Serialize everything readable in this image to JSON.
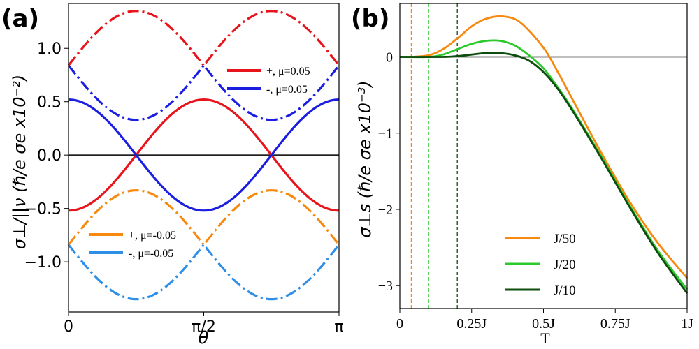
{
  "panels": {
    "a": {
      "label": "(a)"
    },
    "b": {
      "label": "(b)"
    }
  },
  "chart_data": [
    {
      "type": "line",
      "panel": "(a)",
      "xlabel": "θ",
      "ylabel": "σ⊥/||ν (ℏ/e σe x10⁻²)",
      "xlim": [
        0,
        3.14159
      ],
      "ylim": [
        -1.47,
        1.42
      ],
      "xticks": [
        "0",
        "π/2",
        "π"
      ],
      "yticks": [
        {
          "value": 1.0,
          "label": "1.0"
        },
        {
          "value": 0.5,
          "label": "0.5"
        },
        {
          "value": 0.0,
          "label": "0.0"
        },
        {
          "value": -0.5,
          "label": "−0.5"
        },
        {
          "value": -1.0,
          "label": "−1.0"
        }
      ],
      "zero_line": true,
      "legends": [
        {
          "placement": "top-right",
          "entries": [
            {
              "label": "+, μ=0.05",
              "color": "#e8141b"
            },
            {
              "label": "-, μ=0.05",
              "color": "#1a1ee0"
            }
          ]
        },
        {
          "placement": "bottom-left",
          "entries": [
            {
              "label": "+, μ=-0.05",
              "color": "#f7890f"
            },
            {
              "label": "-, μ=-0.05",
              "color": "#2e8fe8"
            }
          ]
        }
      ],
      "series": [
        {
          "name": "+, μ=0.05",
          "style": "solid",
          "color": "#e8141b",
          "sampled_function": "-0.52*cos(2θ)"
        },
        {
          "name": "-, μ=0.05",
          "style": "solid",
          "color": "#1a1ee0",
          "sampled_function": "0.52*cos(2θ)"
        },
        {
          "style": "dashdot",
          "color": "#e8141b",
          "sampled_function": "0.84+0.51*sin(2θ) for θ<π/2, 0.84-0.51*sin(2θ) for θ>π/2"
        },
        {
          "style": "dashdot",
          "color": "#1a1ee0",
          "sampled_function": "0.84-0.51*sin(2θ) for θ<π/2, 0.84+0.51*sin(2θ) for θ>π/2"
        },
        {
          "style": "dashdot",
          "color": "#f7890f",
          "sampled_function": "-0.84+0.51*sin(2θ) for θ<π/2, -0.84-0.51*sin(2θ) for θ>π/2"
        },
        {
          "style": "dashdot",
          "color": "#2e8fe8",
          "sampled_function": "-0.84-0.51*sin(2θ) for θ<π/2, -0.84+0.51*sin(2θ) for θ>π/2"
        }
      ]
    },
    {
      "type": "line",
      "panel": "(b)",
      "xlabel": "T",
      "ylabel": "σ⊥s (ℏ/e σe x10⁻³)",
      "xlim": [
        0,
        1.0
      ],
      "ylim": [
        -3.3,
        0.7
      ],
      "xticks": [
        {
          "value": 0,
          "label": "0"
        },
        {
          "value": 0.25,
          "label": "0.25J"
        },
        {
          "value": 0.5,
          "label": "0.5J"
        },
        {
          "value": 0.75,
          "label": "0.75J"
        },
        {
          "value": 1.0,
          "label": "1J"
        }
      ],
      "yticks": [
        {
          "value": 0,
          "label": "0"
        },
        {
          "value": -1,
          "label": "−1"
        },
        {
          "value": -2,
          "label": "−2"
        },
        {
          "value": -3,
          "label": "−3"
        }
      ],
      "zero_line": true,
      "legend": {
        "placement": "bottom-center",
        "entries": [
          "J/50",
          "J/20",
          "J/10"
        ]
      },
      "vlines": [
        {
          "x": 0.04,
          "color": "#f7890f"
        },
        {
          "x": 0.1,
          "color": "#2cc92c"
        },
        {
          "x": 0.2,
          "color": "#0d4d0d"
        }
      ],
      "series": [
        {
          "name": "J/50",
          "color": "#f7890f",
          "x": [
            0,
            0.04,
            0.1,
            0.15,
            0.2,
            0.25,
            0.3,
            0.36,
            0.42,
            0.5,
            0.55,
            0.6,
            0.7,
            0.8,
            0.9,
            1.0
          ],
          "y": [
            0,
            0,
            0.02,
            0.1,
            0.24,
            0.4,
            0.5,
            0.53,
            0.45,
            0.12,
            -0.2,
            -0.55,
            -1.25,
            -1.9,
            -2.45,
            -2.9
          ]
        },
        {
          "name": "J/20",
          "color": "#2cc92c",
          "x": [
            0,
            0.1,
            0.15,
            0.2,
            0.25,
            0.3,
            0.35,
            0.4,
            0.45,
            0.5,
            0.55,
            0.6,
            0.7,
            0.8,
            0.9,
            1.0
          ],
          "y": [
            0,
            0,
            0.03,
            0.1,
            0.17,
            0.21,
            0.21,
            0.15,
            0.02,
            -0.15,
            -0.4,
            -0.68,
            -1.3,
            -1.95,
            -2.55,
            -3.05
          ]
        },
        {
          "name": "J/10",
          "color": "#0d4d0d",
          "x": [
            0,
            0.15,
            0.2,
            0.25,
            0.3,
            0.35,
            0.4,
            0.45,
            0.5,
            0.55,
            0.6,
            0.7,
            0.8,
            0.9,
            1.0
          ],
          "y": [
            0,
            0,
            0.01,
            0.03,
            0.05,
            0.05,
            0.02,
            -0.05,
            -0.2,
            -0.42,
            -0.7,
            -1.32,
            -1.97,
            -2.58,
            -3.1
          ]
        }
      ]
    }
  ]
}
